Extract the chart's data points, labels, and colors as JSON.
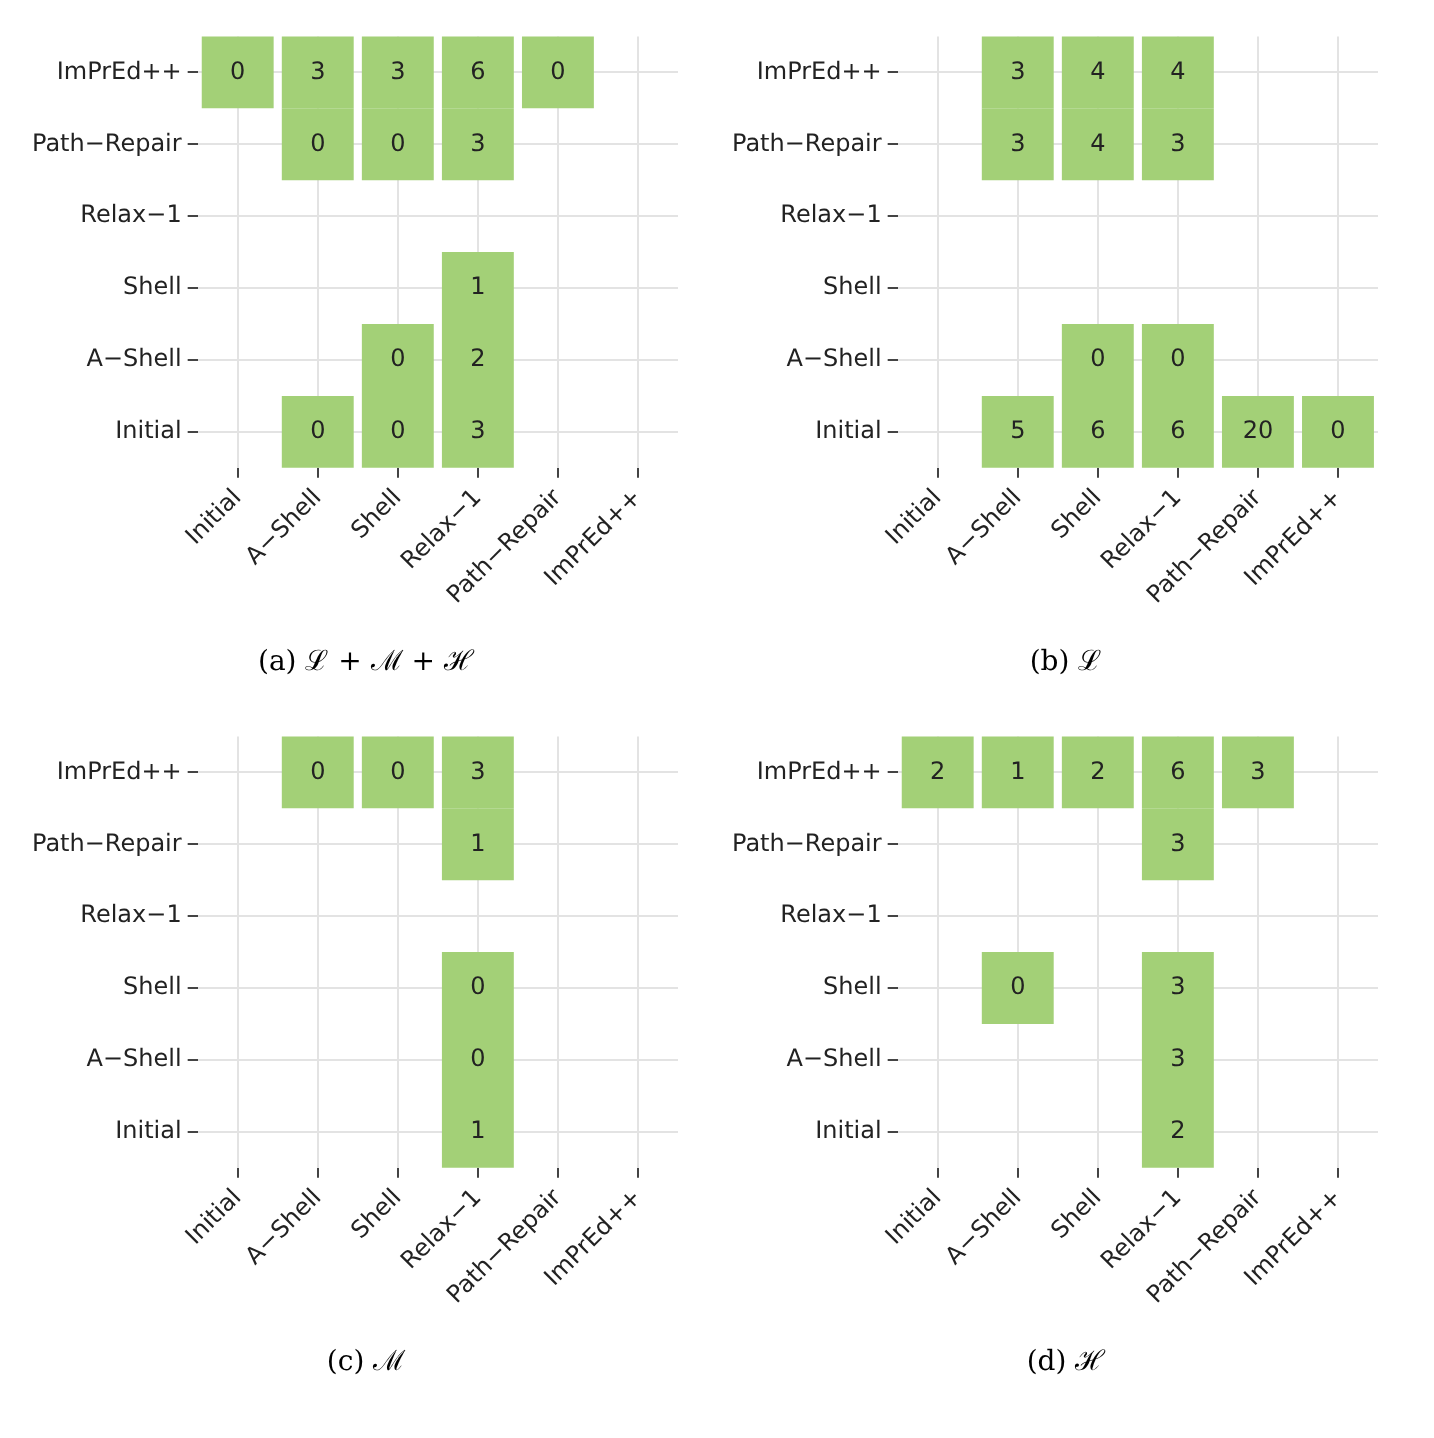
{
  "chart_data": [
    {
      "type": "heatmap",
      "title": "(a) ℒ + ℳ + ℋ",
      "color": "#a3d077",
      "grid": true,
      "data_labels": true,
      "categories": [
        "Initial",
        "A−Shell",
        "Shell",
        "Relax−1",
        "Path−Repair",
        "ImPrEd++"
      ],
      "y_categories": [
        "ImPrEd++",
        "Path−Repair",
        "Relax−1",
        "Shell",
        "A−Shell",
        "Initial"
      ],
      "cells": [
        [
          0,
          3,
          3,
          6,
          0,
          null
        ],
        [
          null,
          0,
          0,
          3,
          null,
          null
        ],
        [
          null,
          null,
          null,
          null,
          null,
          null
        ],
        [
          null,
          null,
          null,
          1,
          null,
          null
        ],
        [
          null,
          null,
          0,
          2,
          null,
          null
        ],
        [
          null,
          0,
          0,
          3,
          null,
          null
        ]
      ]
    },
    {
      "type": "heatmap",
      "title": "(b) ℒ",
      "color": "#a3d077",
      "grid": true,
      "data_labels": true,
      "categories": [
        "Initial",
        "A−Shell",
        "Shell",
        "Relax−1",
        "Path−Repair",
        "ImPrEd++"
      ],
      "y_categories": [
        "ImPrEd++",
        "Path−Repair",
        "Relax−1",
        "Shell",
        "A−Shell",
        "Initial"
      ],
      "cells": [
        [
          null,
          3,
          4,
          4,
          null,
          null
        ],
        [
          null,
          3,
          4,
          3,
          null,
          null
        ],
        [
          null,
          null,
          null,
          null,
          null,
          null
        ],
        [
          null,
          null,
          null,
          null,
          null,
          null
        ],
        [
          null,
          null,
          0,
          0,
          null,
          null
        ],
        [
          null,
          5,
          6,
          6,
          20,
          0
        ]
      ]
    },
    {
      "type": "heatmap",
      "title": "(c) ℳ",
      "color": "#a3d077",
      "grid": true,
      "data_labels": true,
      "categories": [
        "Initial",
        "A−Shell",
        "Shell",
        "Relax−1",
        "Path−Repair",
        "ImPrEd++"
      ],
      "y_categories": [
        "ImPrEd++",
        "Path−Repair",
        "Relax−1",
        "Shell",
        "A−Shell",
        "Initial"
      ],
      "cells": [
        [
          null,
          0,
          0,
          3,
          null,
          null
        ],
        [
          null,
          null,
          null,
          1,
          null,
          null
        ],
        [
          null,
          null,
          null,
          null,
          null,
          null
        ],
        [
          null,
          null,
          null,
          0,
          null,
          null
        ],
        [
          null,
          null,
          null,
          0,
          null,
          null
        ],
        [
          null,
          null,
          null,
          1,
          null,
          null
        ]
      ]
    },
    {
      "type": "heatmap",
      "title": "(d) ℋ",
      "color": "#a3d077",
      "grid": true,
      "data_labels": true,
      "categories": [
        "Initial",
        "A−Shell",
        "Shell",
        "Relax−1",
        "Path−Repair",
        "ImPrEd++"
      ],
      "y_categories": [
        "ImPrEd++",
        "Path−Repair",
        "Relax−1",
        "Shell",
        "A−Shell",
        "Initial"
      ],
      "cells": [
        [
          2,
          1,
          2,
          6,
          3,
          null
        ],
        [
          null,
          null,
          null,
          3,
          null,
          null
        ],
        [
          null,
          null,
          null,
          null,
          null,
          null
        ],
        [
          null,
          0,
          null,
          3,
          null,
          null
        ],
        [
          null,
          null,
          null,
          3,
          null,
          null
        ],
        [
          null,
          null,
          null,
          2,
          null,
          null
        ]
      ]
    }
  ]
}
